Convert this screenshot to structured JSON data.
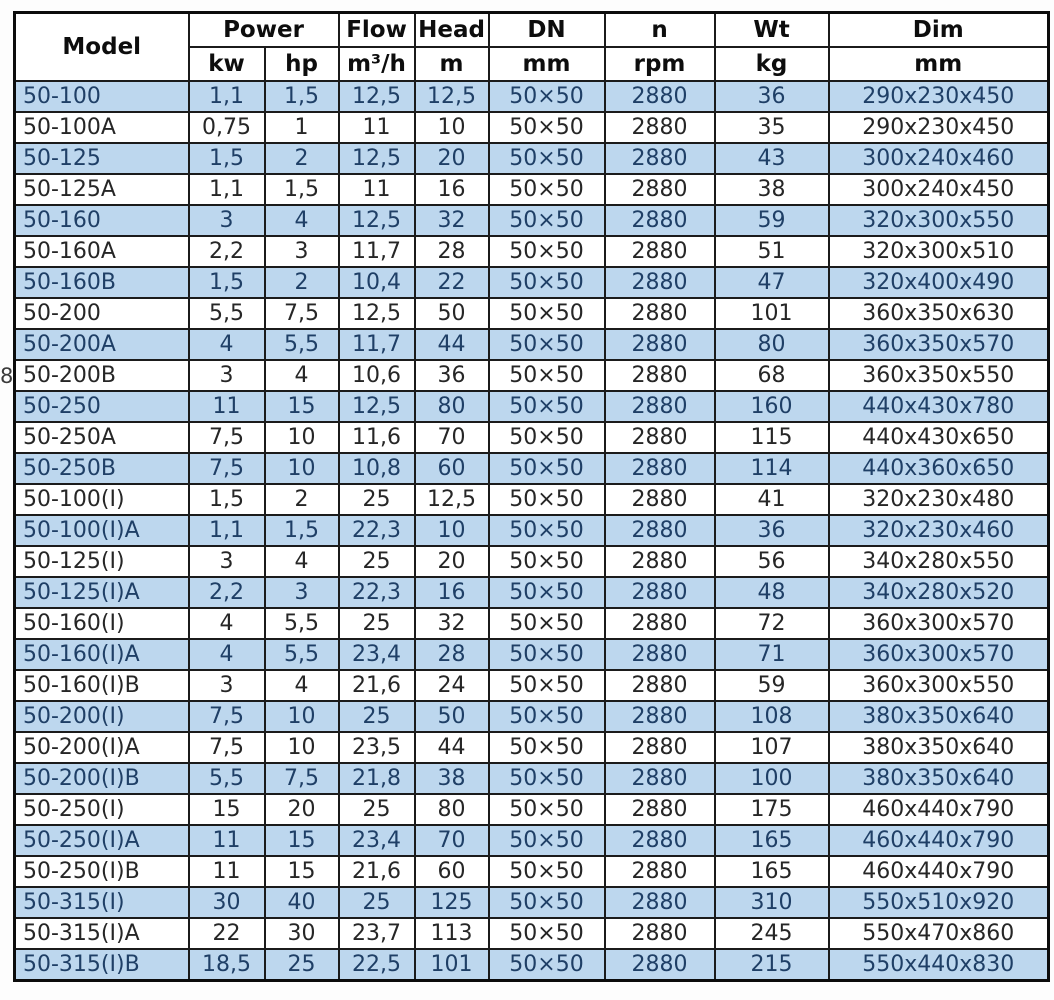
{
  "page": {
    "margin_note": "8"
  },
  "table": {
    "header_row1": [
      {
        "label": "Model"
      },
      {
        "label": "Power"
      },
      {
        "label": "Flow"
      },
      {
        "label": "Head"
      },
      {
        "label": "DN"
      },
      {
        "label": "n"
      },
      {
        "label": "Wt"
      },
      {
        "label": "Dim"
      }
    ],
    "header_row2": [
      "kw",
      "hp",
      "m³/h",
      "m",
      "mm",
      "rpm",
      "kg",
      "mm"
    ],
    "rows": [
      [
        "50-100",
        "1,1",
        "1,5",
        "12,5",
        "12,5",
        "50×50",
        "2880",
        "36",
        "290x230x450"
      ],
      [
        "50-100A",
        "0,75",
        "1",
        "11",
        "10",
        "50×50",
        "2880",
        "35",
        "290x230x450"
      ],
      [
        "50-125",
        "1,5",
        "2",
        "12,5",
        "20",
        "50×50",
        "2880",
        "43",
        "300x240x460"
      ],
      [
        "50-125A",
        "1,1",
        "1,5",
        "11",
        "16",
        "50×50",
        "2880",
        "38",
        "300x240x450"
      ],
      [
        "50-160",
        "3",
        "4",
        "12,5",
        "32",
        "50×50",
        "2880",
        "59",
        "320x300x550"
      ],
      [
        "50-160A",
        "2,2",
        "3",
        "11,7",
        "28",
        "50×50",
        "2880",
        "51",
        "320x300x510"
      ],
      [
        "50-160B",
        "1,5",
        "2",
        "10,4",
        "22",
        "50×50",
        "2880",
        "47",
        "320x400x490"
      ],
      [
        "50-200",
        "5,5",
        "7,5",
        "12,5",
        "50",
        "50×50",
        "2880",
        "101",
        "360x350x630"
      ],
      [
        "50-200A",
        "4",
        "5,5",
        "11,7",
        "44",
        "50×50",
        "2880",
        "80",
        "360x350x570"
      ],
      [
        "50-200B",
        "3",
        "4",
        "10,6",
        "36",
        "50×50",
        "2880",
        "68",
        "360x350x550"
      ],
      [
        "50-250",
        "11",
        "15",
        "12,5",
        "80",
        "50×50",
        "2880",
        "160",
        "440x430x780"
      ],
      [
        "50-250A",
        "7,5",
        "10",
        "11,6",
        "70",
        "50×50",
        "2880",
        "115",
        "440x430x650"
      ],
      [
        "50-250B",
        "7,5",
        "10",
        "10,8",
        "60",
        "50×50",
        "2880",
        "114",
        "440x360x650"
      ],
      [
        "50-100(I)",
        "1,5",
        "2",
        "25",
        "12,5",
        "50×50",
        "2880",
        "41",
        "320x230x480"
      ],
      [
        "50-100(I)A",
        "1,1",
        "1,5",
        "22,3",
        "10",
        "50×50",
        "2880",
        "36",
        "320x230x460"
      ],
      [
        "50-125(I)",
        "3",
        "4",
        "25",
        "20",
        "50×50",
        "2880",
        "56",
        "340x280x550"
      ],
      [
        "50-125(I)A",
        "2,2",
        "3",
        "22,3",
        "16",
        "50×50",
        "2880",
        "48",
        "340x280x520"
      ],
      [
        "50-160(I)",
        "4",
        "5,5",
        "25",
        "32",
        "50×50",
        "2880",
        "72",
        "360x300x570"
      ],
      [
        "50-160(I)A",
        "4",
        "5,5",
        "23,4",
        "28",
        "50×50",
        "2880",
        "71",
        "360x300x570"
      ],
      [
        "50-160(I)B",
        "3",
        "4",
        "21,6",
        "24",
        "50×50",
        "2880",
        "59",
        "360x300x550"
      ],
      [
        "50-200(I)",
        "7,5",
        "10",
        "25",
        "50",
        "50×50",
        "2880",
        "108",
        "380x350x640"
      ],
      [
        "50-200(I)A",
        "7,5",
        "10",
        "23,5",
        "44",
        "50×50",
        "2880",
        "107",
        "380x350x640"
      ],
      [
        "50-200(I)B",
        "5,5",
        "7,5",
        "21,8",
        "38",
        "50×50",
        "2880",
        "100",
        "380x350x640"
      ],
      [
        "50-250(I)",
        "15",
        "20",
        "25",
        "80",
        "50×50",
        "2880",
        "175",
        "460x440x790"
      ],
      [
        "50-250(I)A",
        "11",
        "15",
        "23,4",
        "70",
        "50×50",
        "2880",
        "165",
        "460x440x790"
      ],
      [
        "50-250(I)B",
        "11",
        "15",
        "21,6",
        "60",
        "50×50",
        "2880",
        "165",
        "460x440x790"
      ],
      [
        "50-315(I)",
        "30",
        "40",
        "25",
        "125",
        "50×50",
        "2880",
        "310",
        "550x510x920"
      ],
      [
        "50-315(I)A",
        "22",
        "30",
        "23,7",
        "113",
        "50×50",
        "2880",
        "245",
        "550x470x860"
      ],
      [
        "50-315(I)B",
        "18,5",
        "25",
        "22,5",
        "101",
        "50×50",
        "2880",
        "215",
        "550x440x830"
      ]
    ],
    "colors": {
      "shaded_row_bg": "#bdd7ee",
      "shaded_row_text": "#1f3f66",
      "plain_row_text": "#262626",
      "border": "#1b1b1b"
    }
  }
}
